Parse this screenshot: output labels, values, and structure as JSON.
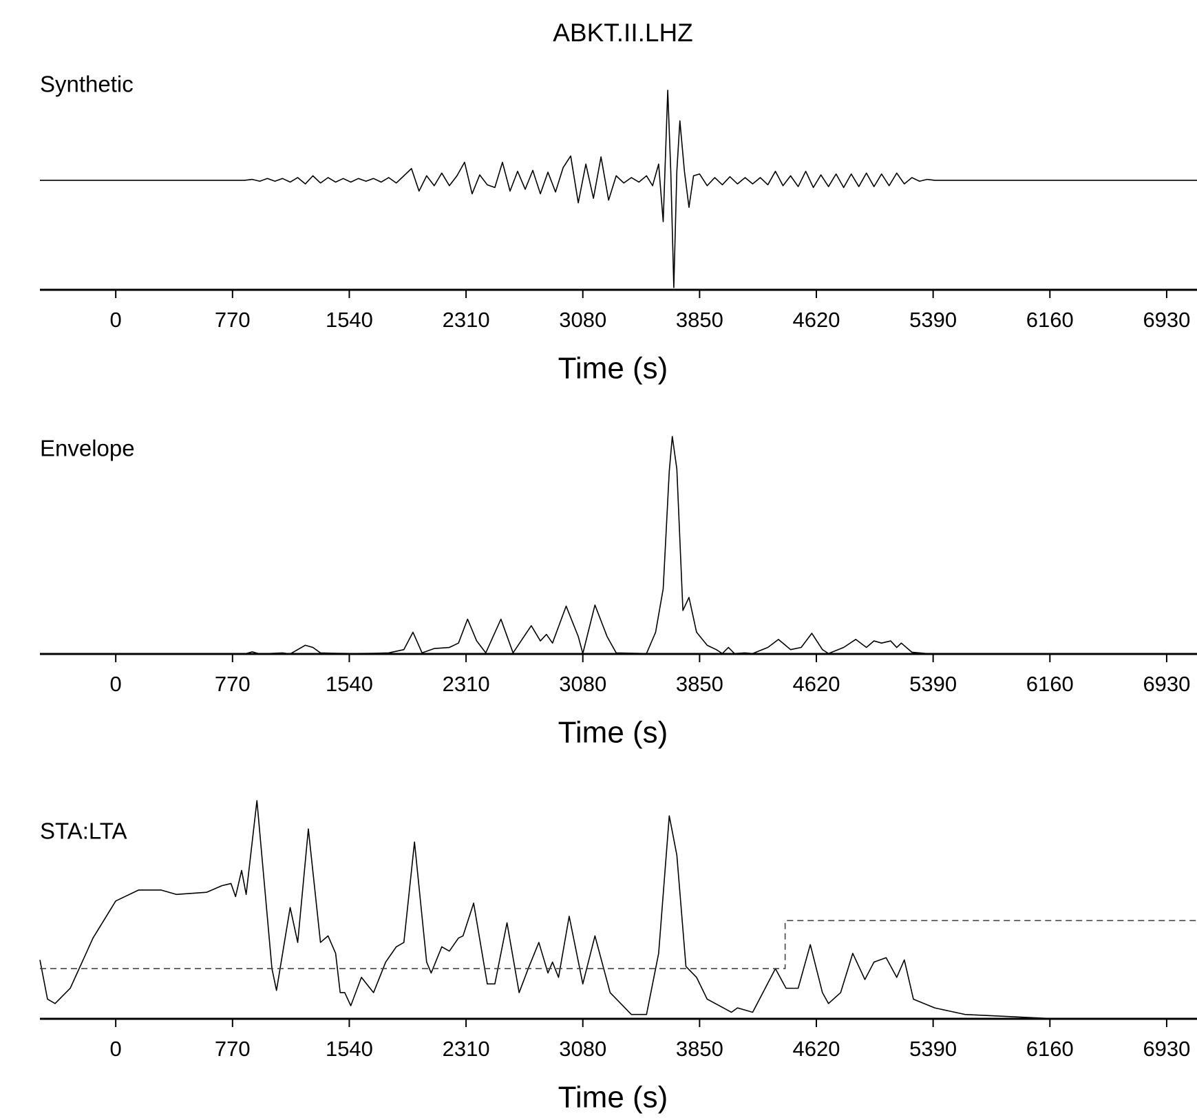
{
  "title": "ABKT.II.LHZ",
  "chart_data": [
    {
      "type": "line",
      "label": "Synthetic",
      "xlabel": "Time (s)",
      "xlim": [
        -500,
        7130
      ],
      "xticks": [
        0,
        770,
        1540,
        2310,
        3080,
        3850,
        4620,
        5390,
        6160,
        6930
      ],
      "ylim": [
        -1.2,
        1.0
      ],
      "series": [
        {
          "color": "#000000",
          "linestyle": "solid",
          "x": [
            -500,
            850,
            900,
            950,
            1000,
            1050,
            1100,
            1150,
            1200,
            1250,
            1300,
            1350,
            1400,
            1450,
            1500,
            1550,
            1600,
            1650,
            1700,
            1750,
            1800,
            1850,
            1900,
            1950,
            2000,
            2050,
            2100,
            2150,
            2200,
            2250,
            2300,
            2350,
            2400,
            2450,
            2500,
            2550,
            2600,
            2650,
            2700,
            2750,
            2800,
            2850,
            2900,
            2950,
            3000,
            3050,
            3100,
            3150,
            3200,
            3250,
            3300,
            3350,
            3400,
            3450,
            3500,
            3540,
            3580,
            3610,
            3640,
            3660,
            3680,
            3700,
            3720,
            3750,
            3780,
            3810,
            3850,
            3900,
            3950,
            4000,
            4050,
            4100,
            4150,
            4200,
            4250,
            4300,
            4350,
            4400,
            4450,
            4500,
            4550,
            4600,
            4650,
            4700,
            4750,
            4800,
            4850,
            4900,
            4950,
            5000,
            5050,
            5100,
            5150,
            5200,
            5250,
            5300,
            5350,
            5400,
            7130
          ],
          "values": [
            0,
            0,
            0.01,
            -0.01,
            0.02,
            -0.01,
            0.02,
            -0.02,
            0.03,
            -0.04,
            0.05,
            -0.03,
            0.03,
            -0.02,
            0.02,
            -0.02,
            0.02,
            -0.01,
            0.02,
            -0.02,
            0.03,
            -0.03,
            0.05,
            0.13,
            -0.12,
            0.05,
            -0.06,
            0.08,
            -0.06,
            0.05,
            0.2,
            -0.15,
            0.06,
            -0.05,
            -0.08,
            0.2,
            -0.12,
            0.1,
            -0.1,
            0.11,
            -0.15,
            0.09,
            -0.13,
            0.14,
            0.27,
            -0.25,
            0.18,
            -0.2,
            0.26,
            -0.22,
            0.05,
            -0.03,
            0.03,
            -0.02,
            0.05,
            -0.06,
            0.18,
            -0.46,
            1.0,
            0.1,
            -1.19,
            0.1,
            0.66,
            0.1,
            -0.3,
            0.05,
            0.07,
            -0.06,
            0.03,
            -0.05,
            0.04,
            -0.04,
            0.03,
            -0.04,
            0.03,
            -0.05,
            0.1,
            -0.06,
            0.05,
            -0.07,
            0.1,
            -0.08,
            0.06,
            -0.07,
            0.07,
            -0.08,
            0.07,
            -0.07,
            0.08,
            -0.07,
            0.07,
            -0.06,
            0.08,
            -0.04,
            0.03,
            -0.01,
            0.01,
            0,
            0
          ]
        }
      ]
    },
    {
      "type": "line",
      "label": "Envelope",
      "xlabel": "Time (s)",
      "xlim": [
        -500,
        7130
      ],
      "xticks": [
        0,
        770,
        1540,
        2310,
        3080,
        3850,
        4620,
        5390,
        6160,
        6930
      ],
      "ylim": [
        0,
        1.0
      ],
      "series": [
        {
          "color": "#000000",
          "linestyle": "solid",
          "x": [
            -500,
            850,
            900,
            950,
            1100,
            1150,
            1250,
            1300,
            1350,
            1450,
            1550,
            1700,
            1800,
            1900,
            1960,
            2020,
            2100,
            2200,
            2260,
            2320,
            2380,
            2440,
            2540,
            2620,
            2740,
            2800,
            2840,
            2880,
            2970,
            3050,
            3080,
            3160,
            3240,
            3300,
            3500,
            3560,
            3610,
            3650,
            3670,
            3700,
            3740,
            3780,
            3830,
            3900,
            3960,
            4000,
            4040,
            4080,
            4150,
            4200,
            4300,
            4370,
            4450,
            4520,
            4590,
            4660,
            4700,
            4800,
            4880,
            4950,
            5000,
            5050,
            5110,
            5150,
            5180,
            5250,
            5350,
            5450,
            7130
          ],
          "values": [
            0,
            0,
            0.01,
            0,
            0.005,
            0,
            0.04,
            0.03,
            0.005,
            0.003,
            0.002,
            0.003,
            0.005,
            0.02,
            0.1,
            0.005,
            0.025,
            0.03,
            0.05,
            0.16,
            0.06,
            0.005,
            0.16,
            0.005,
            0.13,
            0.06,
            0.09,
            0.05,
            0.22,
            0.08,
            0.002,
            0.225,
            0.08,
            0.005,
            0.002,
            0.1,
            0.3,
            0.84,
            1.0,
            0.85,
            0.2,
            0.26,
            0.1,
            0.04,
            0.02,
            0.002,
            0.03,
            0.002,
            0.005,
            0.002,
            0.03,
            0.067,
            0.02,
            0.03,
            0.095,
            0.02,
            0.002,
            0.03,
            0.067,
            0.03,
            0.06,
            0.05,
            0.06,
            0.03,
            0.05,
            0.008,
            0.002,
            0,
            0
          ]
        }
      ]
    },
    {
      "type": "line",
      "label": "STA:LTA",
      "xlabel": "Time (s)",
      "xlim": [
        -500,
        7130
      ],
      "xticks": [
        0,
        770,
        1540,
        2310,
        3080,
        3850,
        4620,
        5390,
        6160,
        6930
      ],
      "ylim": [
        0,
        1.0
      ],
      "series": [
        {
          "color": "#000000",
          "linestyle": "solid",
          "x": [
            -500,
            -450,
            -400,
            -300,
            -150,
            0,
            150,
            300,
            400,
            600,
            700,
            760,
            790,
            830,
            860,
            931,
            1030,
            1060,
            1150,
            1200,
            1270,
            1350,
            1400,
            1450,
            1480,
            1510,
            1550,
            1620,
            1700,
            1780,
            1850,
            1900,
            1970,
            2050,
            2080,
            2150,
            2200,
            2260,
            2290,
            2360,
            2450,
            2500,
            2580,
            2660,
            2720,
            2790,
            2850,
            2880,
            2920,
            2990,
            3080,
            3160,
            3260,
            3400,
            3500,
            3580,
            3650,
            3700,
            3760,
            3830,
            3900,
            3980,
            4060,
            4100,
            4200,
            4350,
            4420,
            4500,
            4580,
            4660,
            4700,
            4780,
            4860,
            4940,
            5000,
            5080,
            5150,
            5200,
            5260,
            5400,
            5600,
            5900,
            6200,
            7130
          ],
          "values": [
            0.27,
            0.09,
            0.07,
            0.14,
            0.37,
            0.54,
            0.59,
            0.59,
            0.57,
            0.58,
            0.61,
            0.62,
            0.56,
            0.68,
            0.57,
            1.0,
            0.23,
            0.13,
            0.51,
            0.35,
            0.87,
            0.35,
            0.38,
            0.3,
            0.12,
            0.12,
            0.06,
            0.19,
            0.12,
            0.26,
            0.33,
            0.35,
            0.81,
            0.26,
            0.21,
            0.33,
            0.31,
            0.37,
            0.38,
            0.53,
            0.16,
            0.16,
            0.44,
            0.12,
            0.23,
            0.35,
            0.21,
            0.26,
            0.19,
            0.47,
            0.16,
            0.38,
            0.12,
            0.02,
            0.02,
            0.3,
            0.93,
            0.75,
            0.24,
            0.19,
            0.09,
            0.06,
            0.03,
            0.05,
            0.03,
            0.23,
            0.14,
            0.14,
            0.34,
            0.12,
            0.07,
            0.12,
            0.3,
            0.18,
            0.26,
            0.28,
            0.19,
            0.27,
            0.09,
            0.05,
            0.02,
            0.01,
            0,
            0
          ]
        },
        {
          "color": "#444444",
          "linestyle": "dashed",
          "x": [
            -500,
            4414,
            4414,
            7130
          ],
          "values": [
            0.23,
            0.23,
            0.45,
            0.45
          ]
        }
      ]
    }
  ]
}
